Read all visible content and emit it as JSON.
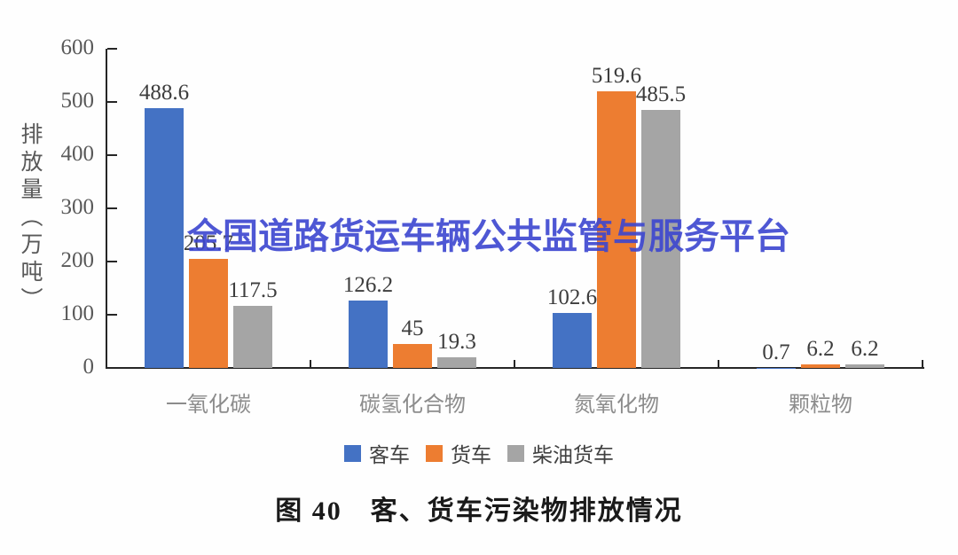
{
  "watermark": {
    "text": "全国道路货运车辆公共监管与服务平台",
    "color": "#3c46d0"
  },
  "caption": {
    "text": "图 40　客、货车污染物排放情况"
  },
  "chart_data": {
    "type": "bar",
    "title": "图 40 客、货车污染物排放情况",
    "categories": [
      "一氧化碳",
      "碳氢化合物",
      "氮氧化物",
      "颗粒物"
    ],
    "series": [
      {
        "name": "客车",
        "color": "#4472c4",
        "values": [
          488.6,
          126.2,
          102.6,
          0.7
        ]
      },
      {
        "name": "货车",
        "color": "#ed7d31",
        "values": [
          205.7,
          45,
          519.6,
          6.2
        ]
      },
      {
        "name": "柴油货车",
        "color": "#a5a5a5",
        "values": [
          117.5,
          19.3,
          485.5,
          6.2
        ]
      }
    ],
    "ylabel": "排放量（万吨）",
    "ylim": [
      0,
      600
    ],
    "yticks": [
      0,
      100,
      200,
      300,
      400,
      500,
      600
    ],
    "grid": false,
    "legend_position": "bottom",
    "value_labels_shown": true,
    "axis_color": "#262626",
    "tick_label_color": "#595959",
    "category_label_color": "#8c8c8c",
    "value_label_color": "#3d3d3d"
  }
}
